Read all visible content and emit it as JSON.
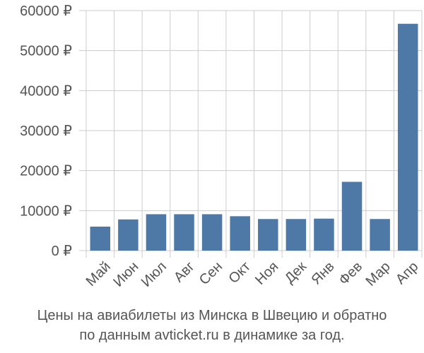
{
  "chart_data": {
    "type": "bar",
    "categories": [
      "Май",
      "Июн",
      "Июл",
      "Авг",
      "Сен",
      "Окт",
      "Ноя",
      "Дек",
      "Янв",
      "Фев",
      "Мар",
      "Апр"
    ],
    "values": [
      6000,
      7800,
      9100,
      9100,
      9100,
      8600,
      7900,
      7900,
      8000,
      17200,
      7900,
      56700
    ],
    "y_ticks": [
      "0 ₽",
      "10000 ₽",
      "20000 ₽",
      "30000 ₽",
      "40000 ₽",
      "50000 ₽",
      "60000 ₽"
    ],
    "y_tick_values": [
      0,
      10000,
      20000,
      30000,
      40000,
      50000,
      60000
    ],
    "ylim": [
      0,
      60000
    ],
    "grid": true,
    "bar_color": "#4e79a7",
    "grid_color": "#cccccc",
    "caption_line_1": "Цены на авиабилеты из Минска в Швецию и обратно",
    "caption_line_2": "по данным avticket.ru в динамике за год."
  }
}
